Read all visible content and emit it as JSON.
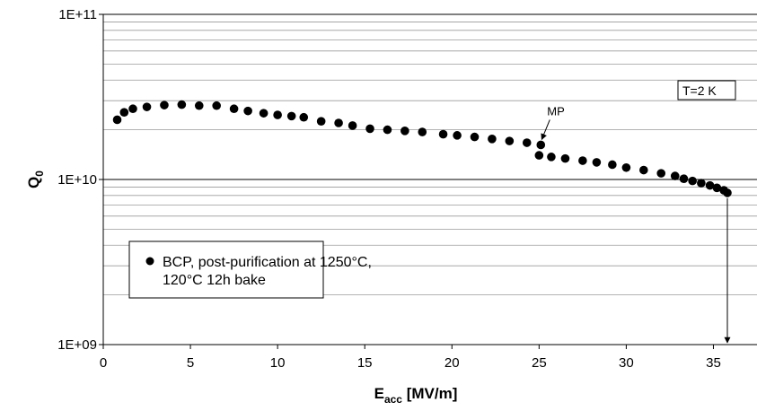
{
  "chart_data": {
    "type": "scatter",
    "ylog": true,
    "grid": true,
    "xlim": [
      0,
      37.5
    ],
    "xticks": [
      0,
      5,
      10,
      15,
      20,
      25,
      30,
      35
    ],
    "ylim": [
      1000000000.0,
      100000000000.0
    ],
    "yticks": [
      {
        "value": 1000000000.0,
        "label": "1E+09"
      },
      {
        "value": 10000000000.0,
        "label": "1E+10"
      },
      {
        "value": 100000000000.0,
        "label": "1E+11"
      }
    ],
    "xlabel_main": "E",
    "xlabel_sub": "acc",
    "xlabel_tail": " [MV/m]",
    "ylabel_main": "Q",
    "ylabel_sub": "0",
    "annotation_box": "T=2 K",
    "annotation_mp": "MP",
    "legend_placement": "bottom-left",
    "series": [
      {
        "name": "BCP, post-purification at 1250°C, 120°C 12h bake",
        "name_lines": [
          "BCP, post-purification at 1250°C,",
          "120°C 12h bake"
        ],
        "color": "#000000",
        "x": [
          0.8,
          1.2,
          1.7,
          2.5,
          3.5,
          4.5,
          5.5,
          6.5,
          7.5,
          8.3,
          9.2,
          10.0,
          10.8,
          11.5,
          12.5,
          13.5,
          14.3,
          15.3,
          16.3,
          17.3,
          18.3,
          19.5,
          20.3,
          21.3,
          22.3,
          23.3,
          24.3,
          25.1,
          25.0,
          25.7,
          26.5,
          27.5,
          28.3,
          29.2,
          30.0,
          31.0,
          32.0,
          32.8,
          33.3,
          33.8,
          34.3,
          34.8,
          35.2,
          35.6,
          35.8
        ],
        "y": [
          23000000000.0,
          25500000000.0,
          26800000000.0,
          27500000000.0,
          28200000000.0,
          28400000000.0,
          28000000000.0,
          28000000000.0,
          26800000000.0,
          26000000000.0,
          25200000000.0,
          24600000000.0,
          24200000000.0,
          23800000000.0,
          22500000000.0,
          22000000000.0,
          21200000000.0,
          20300000000.0,
          20000000000.0,
          19700000000.0,
          19400000000.0,
          18800000000.0,
          18500000000.0,
          18100000000.0,
          17600000000.0,
          17100000000.0,
          16700000000.0,
          16200000000.0,
          14000000000.0,
          13700000000.0,
          13400000000.0,
          13000000000.0,
          12700000000.0,
          12300000000.0,
          11800000000.0,
          11400000000.0,
          10900000000.0,
          10500000000.0,
          10100000000.0,
          9800000000.0,
          9500000000.0,
          9200000000.0,
          8900000000.0,
          8600000000.0,
          8300000000.0
        ],
        "quench_x": 35.8,
        "mp_x": 25.1
      }
    ]
  }
}
